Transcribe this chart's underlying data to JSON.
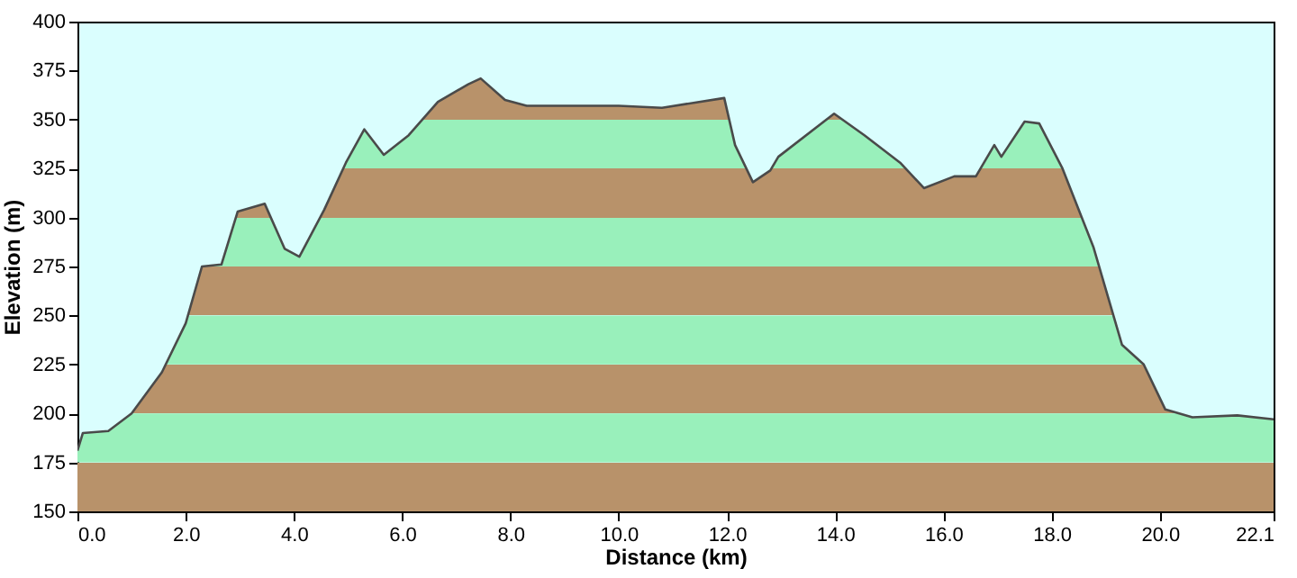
{
  "chart_data": {
    "type": "area",
    "xlabel": "Distance  (km)",
    "ylabel": "Elevation (m)",
    "x": [
      0,
      0.1,
      0.57,
      1.0,
      1.56,
      2.0,
      2.3,
      2.66,
      2.96,
      3.46,
      3.83,
      4.1,
      4.56,
      4.96,
      5.3,
      5.66,
      6.12,
      6.66,
      7.22,
      7.45,
      7.9,
      8.3,
      10.0,
      10.8,
      11.95,
      12.15,
      12.48,
      12.8,
      12.95,
      13.98,
      14.54,
      15.2,
      15.64,
      16.2,
      16.6,
      16.94,
      17.07,
      17.5,
      17.77,
      18.2,
      18.77,
      19.3,
      19.7,
      20.1,
      20.6,
      21.43,
      22.1
    ],
    "series": [
      {
        "color": "#b8926a",
        "values": [
          181,
          190,
          191,
          200,
          221,
          246,
          275,
          276,
          303,
          307,
          284,
          280,
          304,
          328,
          345,
          332,
          342,
          359,
          368,
          371,
          360,
          357,
          357,
          356,
          361,
          337,
          318,
          324,
          331,
          353,
          342,
          328,
          315,
          321,
          321,
          337,
          331,
          349,
          348,
          325,
          285,
          235,
          225,
          202,
          198,
          199,
          197
        ]
      }
    ],
    "bands": [
      {
        "axis": "y",
        "from": 175,
        "to": 200,
        "color": "#99f0bb"
      },
      {
        "axis": "y",
        "from": 225,
        "to": 250,
        "color": "#99f0bb"
      },
      {
        "axis": "y",
        "from": 275,
        "to": 300,
        "color": "#99f0bb"
      },
      {
        "axis": "y",
        "from": 325,
        "to": 350,
        "color": "#99f0bb"
      }
    ],
    "xlim": [
      0,
      22.1
    ],
    "ylim": [
      150,
      400
    ],
    "xticks": [
      {
        "value": 0,
        "label": "0.0"
      },
      {
        "value": 2,
        "label": "2.0"
      },
      {
        "value": 4,
        "label": "4.0"
      },
      {
        "value": 6,
        "label": "6.0"
      },
      {
        "value": 8,
        "label": "8.0"
      },
      {
        "value": 10,
        "label": "10.0"
      },
      {
        "value": 12,
        "label": "12.0"
      },
      {
        "value": 14,
        "label": "14.0"
      },
      {
        "value": 16,
        "label": "16.0"
      },
      {
        "value": 18,
        "label": "18.0"
      },
      {
        "value": 20,
        "label": "20.0"
      },
      22.1
    ],
    "yticks": [
      150,
      175,
      200,
      225,
      250,
      275,
      300,
      325,
      350,
      375,
      400
    ],
    "grid": false
  }
}
